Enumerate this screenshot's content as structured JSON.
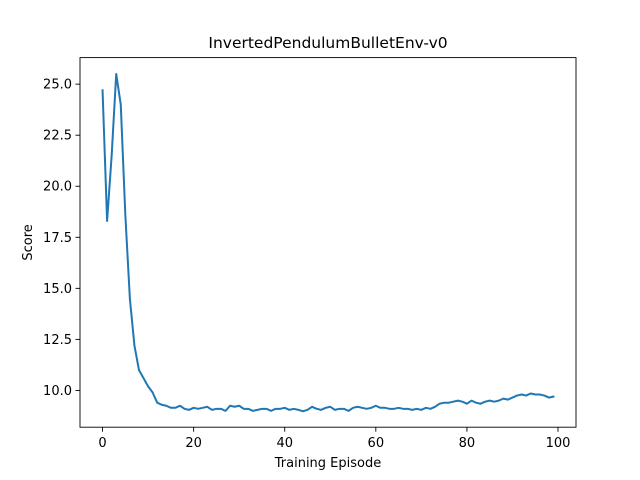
{
  "chart_data": {
    "type": "line",
    "title": "InvertedPendulumBulletEnv-v0",
    "xlabel": "Training Episode",
    "ylabel": "Score",
    "xlim": [
      -4.95,
      103.95
    ],
    "ylim": [
      8.2,
      26.3
    ],
    "xticks": [
      0,
      20,
      40,
      60,
      80,
      100
    ],
    "yticks": [
      10.0,
      12.5,
      15.0,
      17.5,
      20.0,
      22.5,
      25.0
    ],
    "grid": false,
    "legend": "none",
    "line_color": "#1f77b4",
    "series": [
      {
        "x": [
          0,
          1,
          2,
          3,
          4,
          5,
          6,
          7,
          8,
          9,
          10,
          11,
          12,
          13,
          14,
          15,
          16,
          17,
          18,
          19,
          20,
          21,
          22,
          23,
          24,
          25,
          26,
          27,
          28,
          29,
          30,
          31,
          32,
          33,
          34,
          35,
          36,
          37,
          38,
          39,
          40,
          41,
          42,
          43,
          44,
          45,
          46,
          47,
          48,
          49,
          50,
          51,
          52,
          53,
          54,
          55,
          56,
          57,
          58,
          59,
          60,
          61,
          62,
          63,
          64,
          65,
          66,
          67,
          68,
          69,
          70,
          71,
          72,
          73,
          74,
          75,
          76,
          77,
          78,
          79,
          80,
          81,
          82,
          83,
          84,
          85,
          86,
          87,
          88,
          89,
          90,
          91,
          92,
          93,
          94,
          95,
          96,
          97,
          98,
          99
        ],
        "y": [
          24.7,
          18.3,
          21.5,
          25.5,
          24.0,
          18.6,
          14.5,
          12.2,
          11.0,
          10.6,
          10.2,
          9.9,
          9.4,
          9.3,
          9.25,
          9.15,
          9.15,
          9.25,
          9.1,
          9.05,
          9.15,
          9.1,
          9.15,
          9.2,
          9.05,
          9.1,
          9.1,
          9.0,
          9.25,
          9.2,
          9.25,
          9.1,
          9.1,
          9.0,
          9.05,
          9.1,
          9.1,
          9.0,
          9.1,
          9.1,
          9.15,
          9.05,
          9.1,
          9.05,
          8.98,
          9.05,
          9.2,
          9.1,
          9.05,
          9.15,
          9.2,
          9.05,
          9.1,
          9.1,
          9.0,
          9.15,
          9.2,
          9.15,
          9.1,
          9.15,
          9.25,
          9.15,
          9.15,
          9.1,
          9.1,
          9.15,
          9.1,
          9.1,
          9.05,
          9.1,
          9.05,
          9.15,
          9.1,
          9.2,
          9.35,
          9.4,
          9.4,
          9.45,
          9.5,
          9.45,
          9.35,
          9.5,
          9.4,
          9.35,
          9.45,
          9.5,
          9.45,
          9.5,
          9.6,
          9.55,
          9.65,
          9.75,
          9.8,
          9.75,
          9.85,
          9.8,
          9.8,
          9.75,
          9.65,
          9.7
        ]
      }
    ]
  }
}
